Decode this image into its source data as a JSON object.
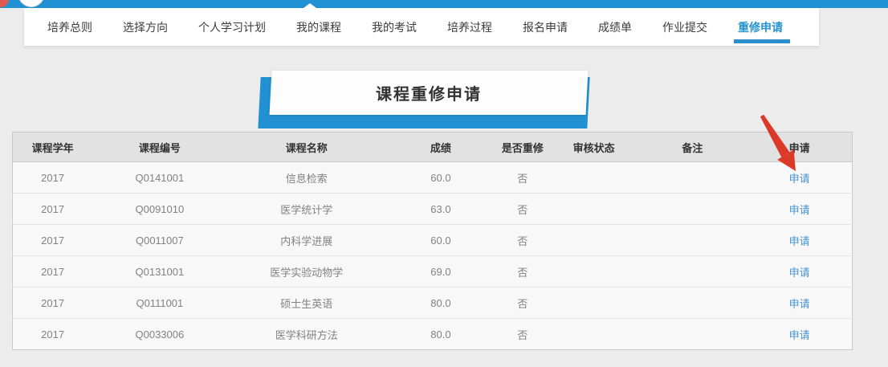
{
  "topbar": {
    "color": "#2191d3"
  },
  "nav": {
    "tabs": [
      {
        "label": "培养总则",
        "active": false
      },
      {
        "label": "选择方向",
        "active": false
      },
      {
        "label": "个人学习计划",
        "active": false
      },
      {
        "label": "我的课程",
        "active": false
      },
      {
        "label": "我的考试",
        "active": false
      },
      {
        "label": "培养过程",
        "active": false
      },
      {
        "label": "报名申请",
        "active": false
      },
      {
        "label": "成绩单",
        "active": false
      },
      {
        "label": "作业提交",
        "active": false
      },
      {
        "label": "重修申请",
        "active": true
      }
    ]
  },
  "banner": {
    "title": "课程重修申请"
  },
  "table": {
    "headers": [
      "课程学年",
      "课程编号",
      "课程名称",
      "成绩",
      "是否重修",
      "审核状态",
      "备注",
      "申请"
    ],
    "apply_label": "申请",
    "rows": [
      {
        "year": "2017",
        "code": "Q0141001",
        "name": "信息检索",
        "score": "60.0",
        "retake": "否",
        "status": "",
        "remark": ""
      },
      {
        "year": "2017",
        "code": "Q0091010",
        "name": "医学统计学",
        "score": "63.0",
        "retake": "否",
        "status": "",
        "remark": ""
      },
      {
        "year": "2017",
        "code": "Q0011007",
        "name": "内科学进展",
        "score": "60.0",
        "retake": "否",
        "status": "",
        "remark": ""
      },
      {
        "year": "2017",
        "code": "Q0131001",
        "name": "医学实验动物学",
        "score": "69.0",
        "retake": "否",
        "status": "",
        "remark": ""
      },
      {
        "year": "2017",
        "code": "Q0111001",
        "name": "硕士生英语",
        "score": "80.0",
        "retake": "否",
        "status": "",
        "remark": ""
      },
      {
        "year": "2017",
        "code": "Q0033006",
        "name": "医学科研方法",
        "score": "80.0",
        "retake": "否",
        "status": "",
        "remark": ""
      }
    ]
  },
  "annotation": {
    "arrow_color": "#dc3a29"
  },
  "colors": {
    "accent_blue": "#2191d3",
    "active_tab_blue": "#2793d2",
    "link_blue": "#4593d2",
    "page_background": "#ececec",
    "header_background": "#e2e2e2",
    "row_background": "#f8f8f8"
  }
}
